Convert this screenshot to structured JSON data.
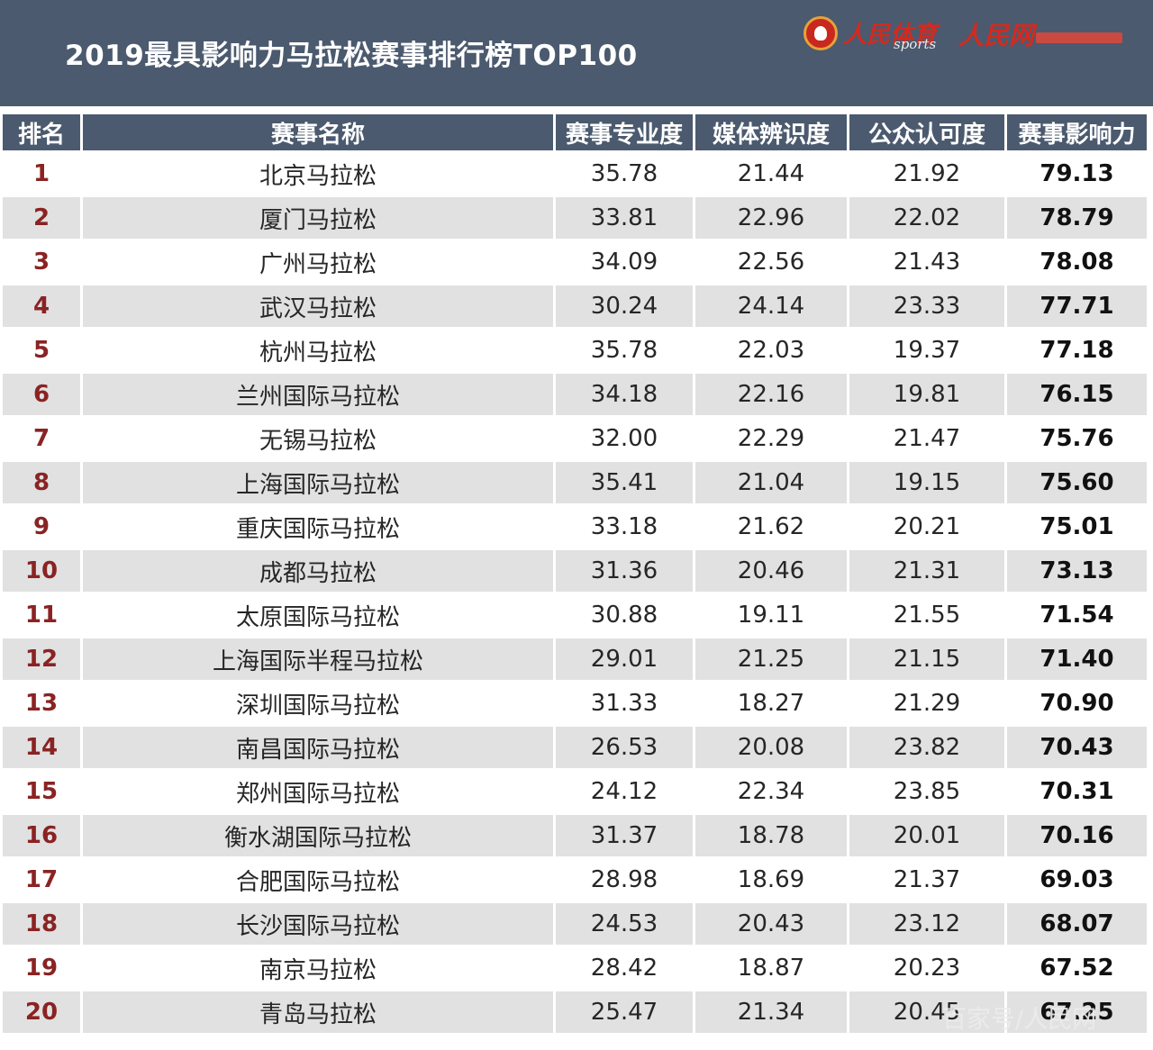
{
  "header": {
    "title": "2019最具影响力马拉松赛事排行榜TOP100",
    "logo_sports_cn": "人民体育",
    "logo_sports_en": "sports",
    "logo_people": "人民网"
  },
  "table": {
    "columns": [
      "排名",
      "赛事名称",
      "赛事专业度",
      "媒体辨识度",
      "公众认可度",
      "赛事影响力"
    ],
    "rows": [
      {
        "rank": "1",
        "name": "北京马拉松",
        "professional": "35.78",
        "media": "21.44",
        "public": "21.92",
        "total": "79.13"
      },
      {
        "rank": "2",
        "name": "厦门马拉松",
        "professional": "33.81",
        "media": "22.96",
        "public": "22.02",
        "total": "78.79"
      },
      {
        "rank": "3",
        "name": "广州马拉松",
        "professional": "34.09",
        "media": "22.56",
        "public": "21.43",
        "total": "78.08"
      },
      {
        "rank": "4",
        "name": "武汉马拉松",
        "professional": "30.24",
        "media": "24.14",
        "public": "23.33",
        "total": "77.71"
      },
      {
        "rank": "5",
        "name": "杭州马拉松",
        "professional": "35.78",
        "media": "22.03",
        "public": "19.37",
        "total": "77.18"
      },
      {
        "rank": "6",
        "name": "兰州国际马拉松",
        "professional": "34.18",
        "media": "22.16",
        "public": "19.81",
        "total": "76.15"
      },
      {
        "rank": "7",
        "name": "无锡马拉松",
        "professional": "32.00",
        "media": "22.29",
        "public": "21.47",
        "total": "75.76"
      },
      {
        "rank": "8",
        "name": "上海国际马拉松",
        "professional": "35.41",
        "media": "21.04",
        "public": "19.15",
        "total": "75.60"
      },
      {
        "rank": "9",
        "name": "重庆国际马拉松",
        "professional": "33.18",
        "media": "21.62",
        "public": "20.21",
        "total": "75.01"
      },
      {
        "rank": "10",
        "name": "成都马拉松",
        "professional": "31.36",
        "media": "20.46",
        "public": "21.31",
        "total": "73.13"
      },
      {
        "rank": "11",
        "name": "太原国际马拉松",
        "professional": "30.88",
        "media": "19.11",
        "public": "21.55",
        "total": "71.54"
      },
      {
        "rank": "12",
        "name": "上海国际半程马拉松",
        "professional": "29.01",
        "media": "21.25",
        "public": "21.15",
        "total": "71.40"
      },
      {
        "rank": "13",
        "name": "深圳国际马拉松",
        "professional": "31.33",
        "media": "18.27",
        "public": "21.29",
        "total": "70.90"
      },
      {
        "rank": "14",
        "name": "南昌国际马拉松",
        "professional": "26.53",
        "media": "20.08",
        "public": "23.82",
        "total": "70.43"
      },
      {
        "rank": "15",
        "name": "郑州国际马拉松",
        "professional": "24.12",
        "media": "22.34",
        "public": "23.85",
        "total": "70.31"
      },
      {
        "rank": "16",
        "name": "衡水湖国际马拉松",
        "professional": "31.37",
        "media": "18.78",
        "public": "20.01",
        "total": "70.16"
      },
      {
        "rank": "17",
        "name": "合肥国际马拉松",
        "professional": "28.98",
        "media": "18.69",
        "public": "21.37",
        "total": "69.03"
      },
      {
        "rank": "18",
        "name": "长沙国际马拉松",
        "professional": "24.53",
        "media": "20.43",
        "public": "23.12",
        "total": "68.07"
      },
      {
        "rank": "19",
        "name": "南京马拉松",
        "professional": "28.42",
        "media": "18.87",
        "public": "20.23",
        "total": "67.52"
      },
      {
        "rank": "20",
        "name": "青岛马拉松",
        "professional": "25.47",
        "media": "21.34",
        "public": "20.45",
        "total": "67.25"
      }
    ]
  },
  "watermark": "百家号/人民网",
  "colors": {
    "banner": "#4b5a6e",
    "rank_text": "#8a2323",
    "row_alt": "#e1e1e1",
    "logo_red": "#d32a1f"
  }
}
